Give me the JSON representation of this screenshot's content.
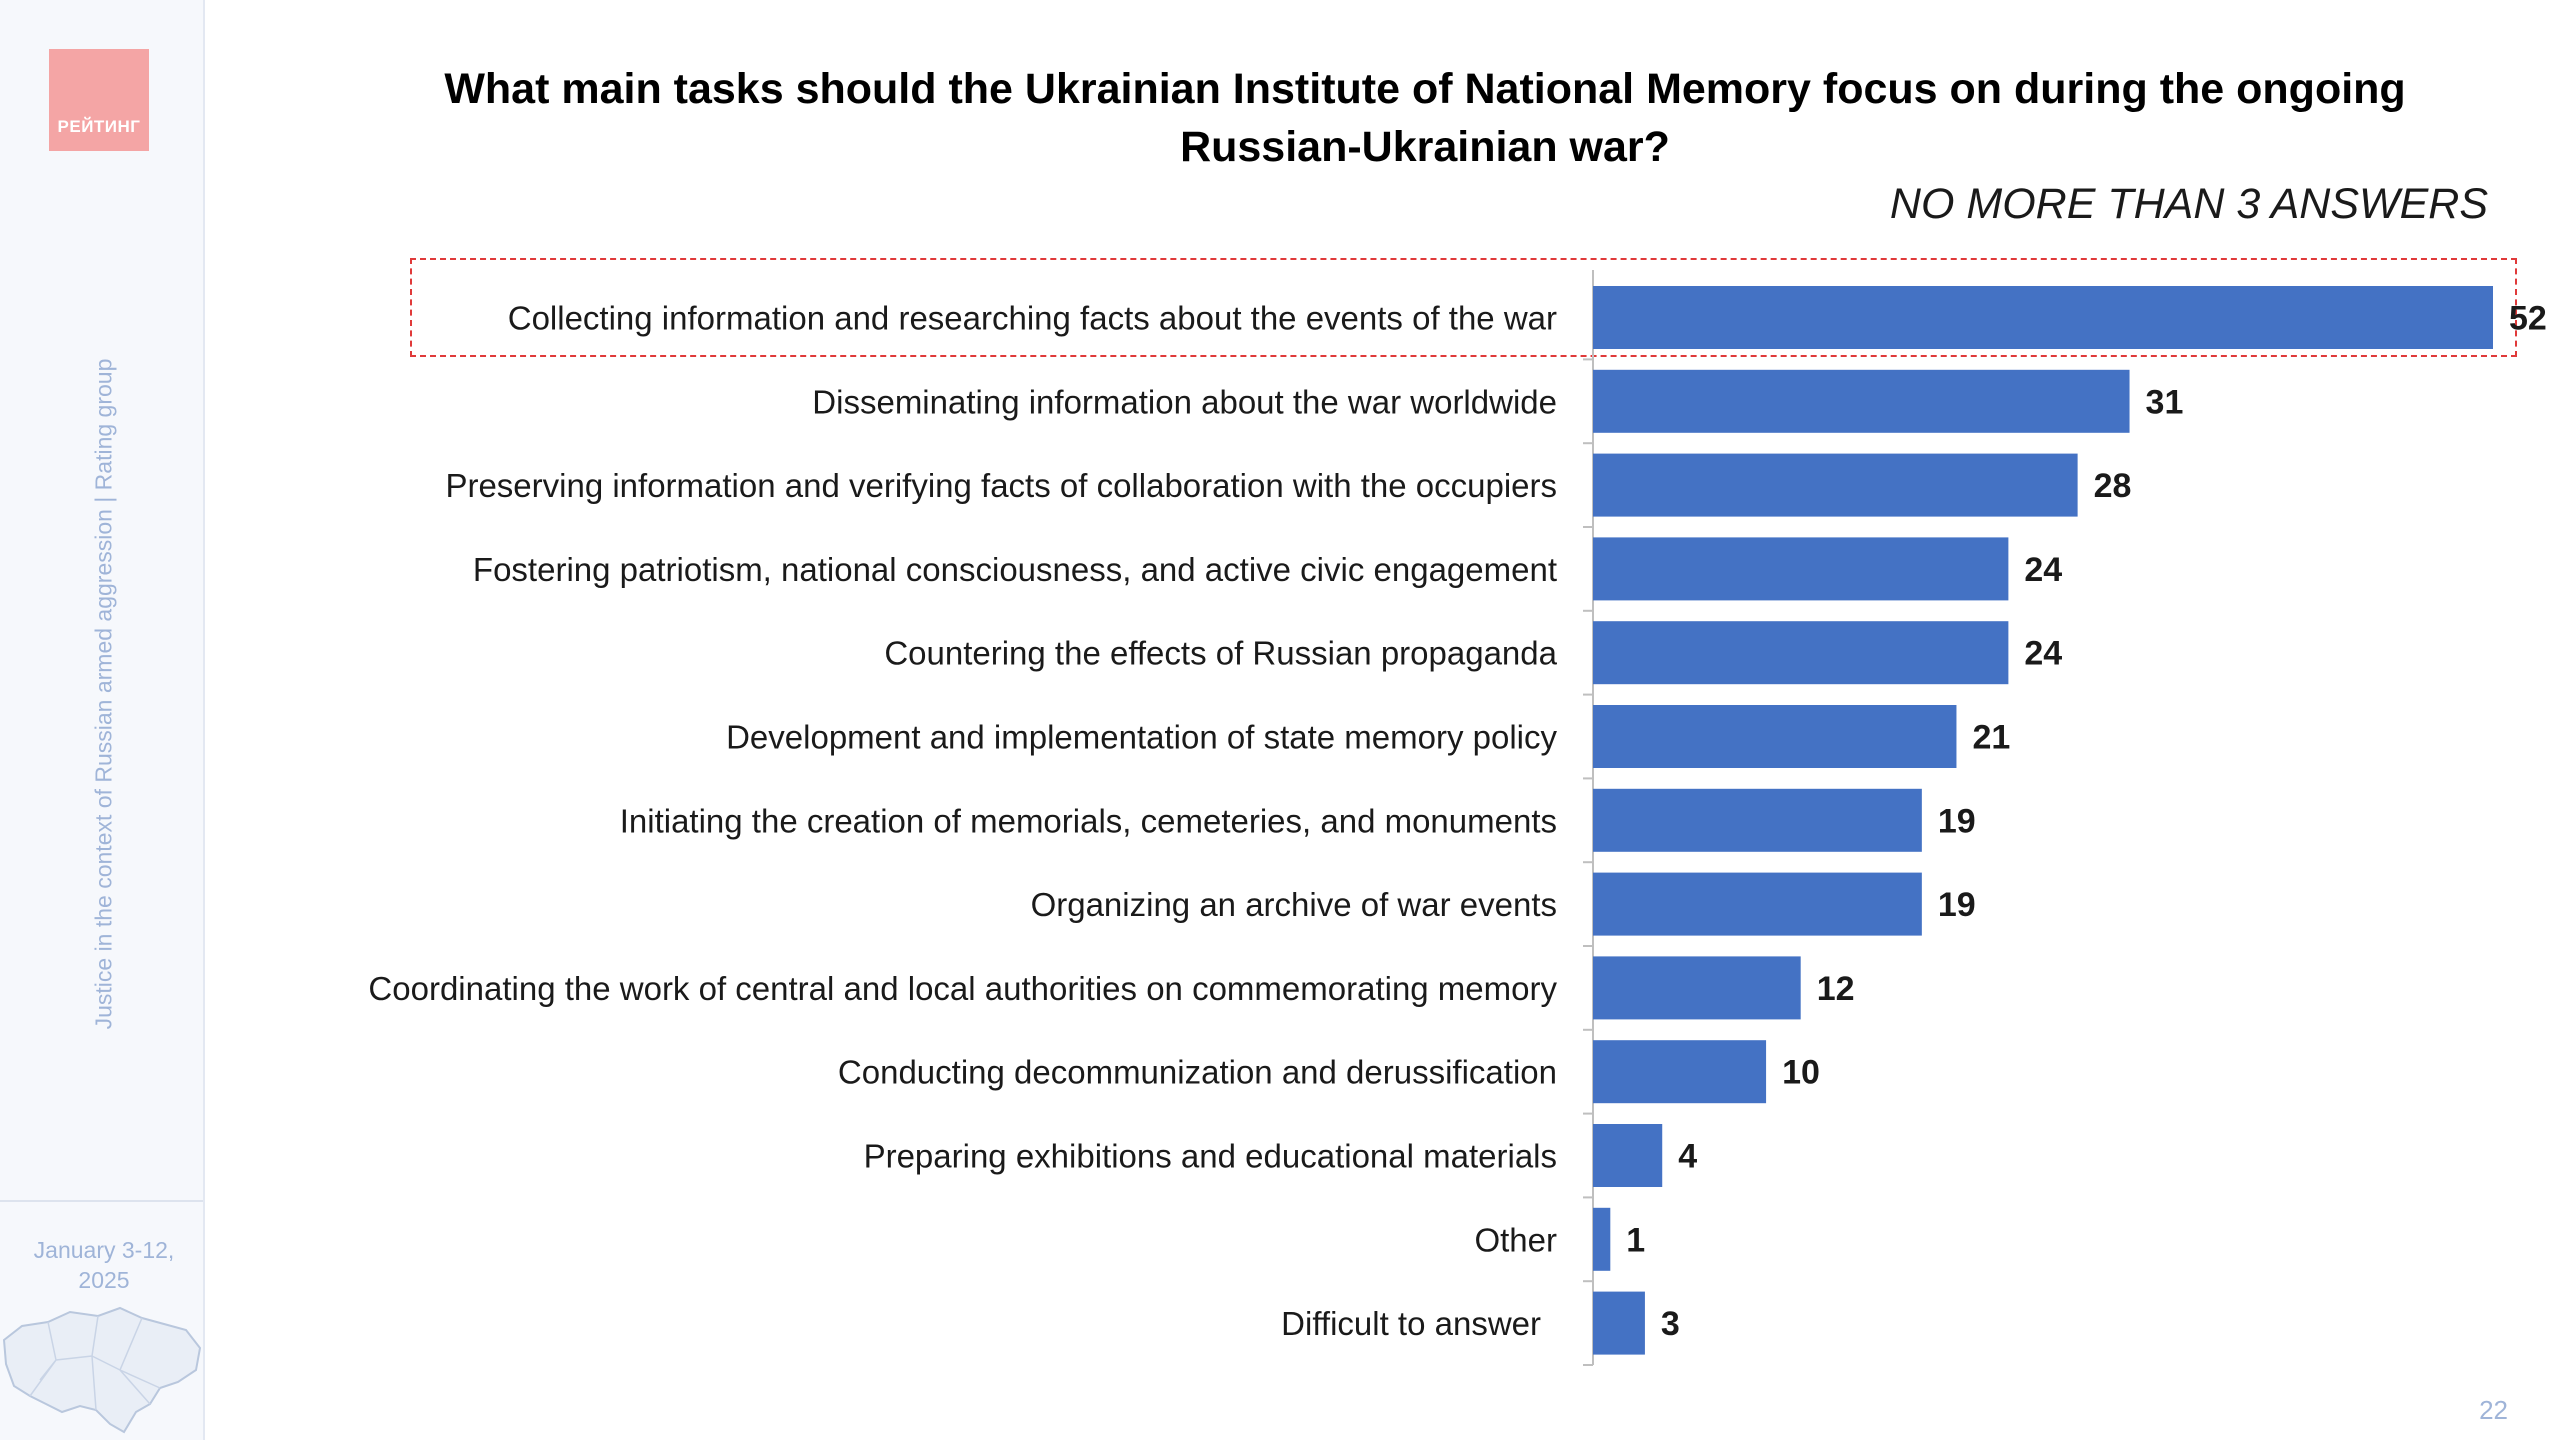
{
  "slide": {
    "title": "What main tasks should the Ukrainian Institute of National Memory focus on during the ongoing Russian-Ukrainian war?",
    "subtitle": "NO MORE THAN 3 ANSWERS",
    "page_number": "22"
  },
  "sidebar": {
    "logo_text": "РЕЙТИНГ",
    "vertical_caption": "Justice in the context of Russian armed aggression | Rating group",
    "date": "January 3-12,\n2025"
  },
  "colors": {
    "bar": "#4472c4",
    "highlight": "#e03a3a",
    "logo": "#f4a5a5",
    "sidebar_text": "#9fb4d8"
  },
  "chart_data": {
    "type": "bar",
    "orientation": "horizontal",
    "categories": [
      "Collecting information and researching facts about the events of the war",
      "Disseminating information about the war worldwide",
      "Preserving information and verifying facts of collaboration with the occupiers",
      "Fostering patriotism, national consciousness, and active civic engagement",
      "Countering the effects of Russian propaganda",
      "Development and implementation of state memory policy",
      "Initiating the creation of memorials, cemeteries, and monuments",
      "Organizing an archive of war events",
      "Coordinating the work of central and local authorities on commemorating memory",
      "Conducting decommunization and derussification",
      "Preparing exhibitions and educational materials",
      "Other",
      "Difficult to answer"
    ],
    "values": [
      52,
      31,
      28,
      24,
      24,
      21,
      19,
      19,
      12,
      10,
      4,
      1,
      3
    ],
    "xlim": [
      0,
      52
    ],
    "highlighted_category_index": 0,
    "grid": false,
    "legend": "none"
  }
}
